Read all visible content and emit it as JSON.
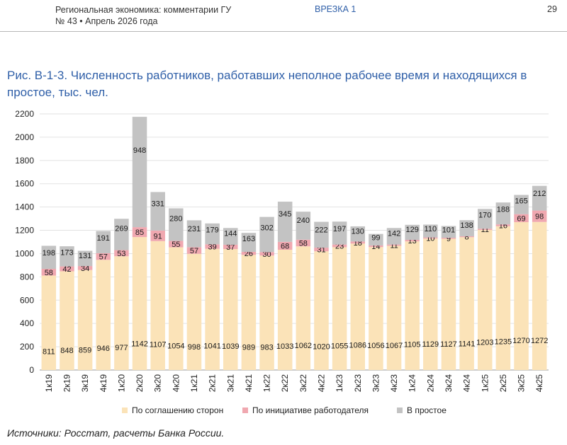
{
  "header": {
    "publication": "Региональная экономика: комментарии ГУ",
    "issue": "№ 43 • Апрель 2026 года",
    "section": "ВРЕЗКА 1",
    "page_number": "29"
  },
  "figure": {
    "title": "Рис. В-1-3. Численность работников, работавших неполное рабочее время и находящихся в простое, тыс. чел.",
    "source": "Источники: Росстат, расчеты Банка России."
  },
  "colors": {
    "series1": "#fbe3b8",
    "series2": "#f0a8b0",
    "series3": "#c3c3c3"
  },
  "chart_data": {
    "type": "bar",
    "stacked": true,
    "categories": [
      "1к19",
      "2к19",
      "3к19",
      "4к19",
      "1к20",
      "2к20",
      "3к20",
      "4к20",
      "1к21",
      "2к21",
      "3к21",
      "4к21",
      "1к22",
      "2к22",
      "3к22",
      "4к22",
      "1к23",
      "2к23",
      "3к23",
      "4к23",
      "1к24",
      "2к24",
      "3к24",
      "4к24",
      "1к25",
      "2к25",
      "3к25",
      "4к25"
    ],
    "series": [
      {
        "name": "По соглашению сторон",
        "values": [
          811,
          848,
          859,
          946,
          977,
          1142,
          1107,
          1054,
          998,
          1041,
          1039,
          989,
          983,
          1033,
          1062,
          1020,
          1055,
          1086,
          1056,
          1067,
          1105,
          1129,
          1127,
          1141,
          1203,
          1235,
          1270,
          1272
        ]
      },
      {
        "name": "По инициативе работодателя",
        "values": [
          58,
          42,
          34,
          57,
          53,
          85,
          91,
          55,
          57,
          39,
          37,
          26,
          30,
          68,
          58,
          31,
          23,
          18,
          14,
          11,
          13,
          10,
          9,
          8,
          11,
          16,
          69,
          98
        ]
      },
      {
        "name": "В простое",
        "values": [
          198,
          173,
          131,
          191,
          269,
          948,
          331,
          280,
          231,
          179,
          144,
          163,
          302,
          345,
          240,
          222,
          197,
          130,
          99,
          142,
          129,
          110,
          101,
          138,
          170,
          188,
          165,
          212
        ]
      }
    ],
    "ylim": [
      0,
      2200
    ],
    "yticks": [
      0,
      200,
      400,
      600,
      800,
      1000,
      1200,
      1400,
      1600,
      1800,
      2000,
      2200
    ],
    "grid": true,
    "legend_position": "bottom"
  }
}
